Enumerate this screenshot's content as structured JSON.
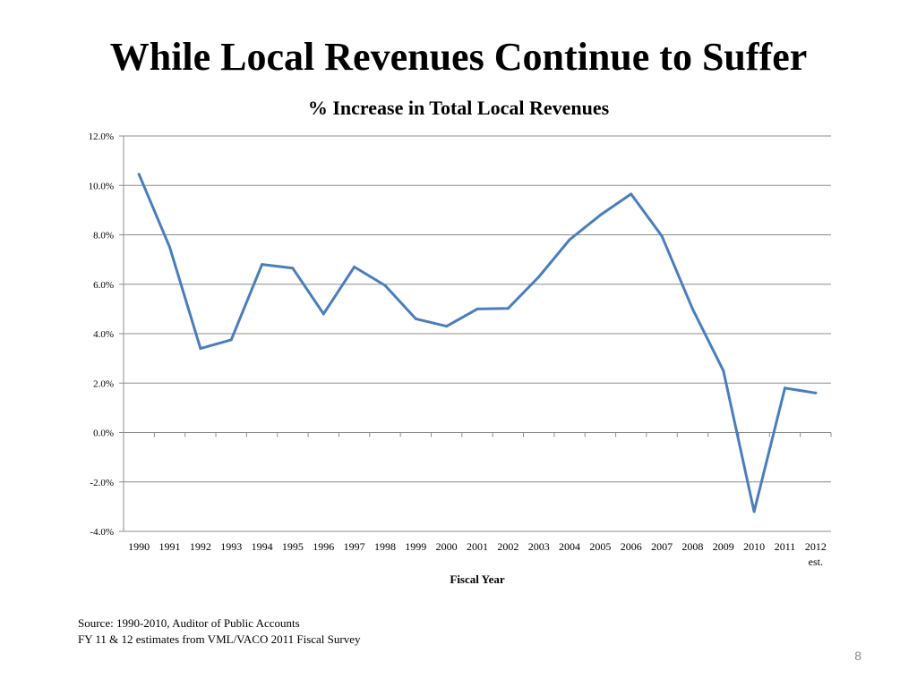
{
  "slide": {
    "title": "While Local Revenues Continue to Suffer",
    "source_line1": "Source:  1990-2010, Auditor of Public Accounts",
    "source_line2": "FY 11 & 12 estimates from VML/VACO 2011 Fiscal Survey",
    "page_number": "8"
  },
  "chart_data": {
    "type": "line",
    "title": "% Increase in Total Local Revenues",
    "xlabel": "Fiscal Year",
    "ylabel": "",
    "categories": [
      "1990",
      "1991",
      "1992",
      "1993",
      "1994",
      "1995",
      "1996",
      "1997",
      "1998",
      "1999",
      "2000",
      "2001",
      "2002",
      "2003",
      "2004",
      "2005",
      "2006",
      "2007",
      "2008",
      "2009",
      "2010",
      "2011",
      "2012"
    ],
    "category_sublabels": {
      "2012": "est."
    },
    "series": [
      {
        "name": "% Increase in Total Local Revenues",
        "color": "#4a7ebb",
        "values": [
          10.45,
          7.5,
          3.4,
          3.75,
          6.8,
          6.65,
          4.8,
          6.7,
          5.95,
          4.6,
          4.3,
          5.0,
          5.02,
          6.3,
          7.8,
          8.8,
          9.65,
          7.95,
          5.0,
          2.5,
          -3.2,
          1.8,
          1.6
        ]
      }
    ],
    "ylim": [
      -4,
      12
    ],
    "yticks": [
      -4,
      -2,
      0,
      2,
      4,
      6,
      8,
      10,
      12
    ],
    "ytick_labels": [
      "-4.0%",
      "-2.0%",
      "0.0%",
      "2.0%",
      "4.0%",
      "6.0%",
      "8.0%",
      "10.0%",
      "12.0%"
    ],
    "grid": true,
    "legend": "none",
    "gridline_color": "#8c8c8c"
  }
}
